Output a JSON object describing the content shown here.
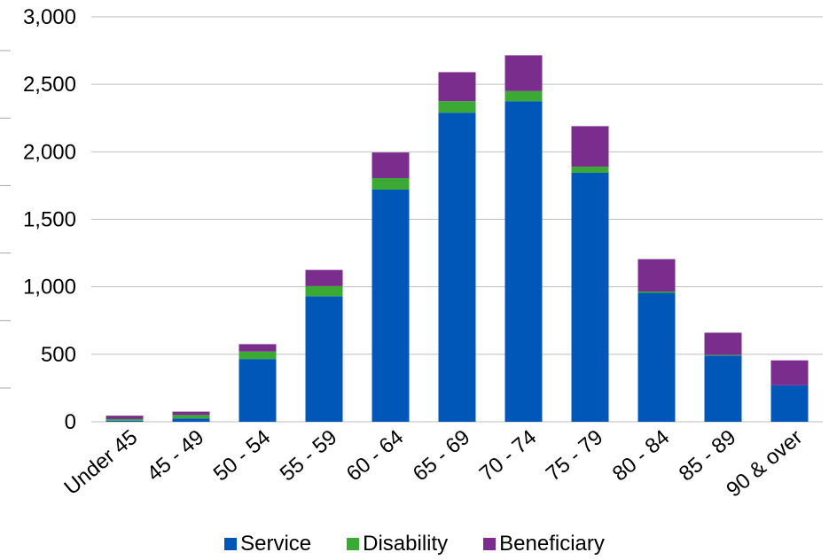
{
  "chart_data": {
    "type": "bar",
    "stacked": true,
    "categories": [
      "Under 45",
      "45 - 49",
      "50 - 54",
      "55 - 59",
      "60 - 64",
      "65 - 69",
      "70 - 74",
      "75 - 79",
      "80 - 84",
      "85 - 89",
      "90 & over"
    ],
    "series": [
      {
        "name": "Service",
        "color": "#0057b8",
        "values": [
          8,
          25,
          465,
          930,
          1720,
          2290,
          2375,
          1845,
          955,
          490,
          270
        ]
      },
      {
        "name": "Disability",
        "color": "#3aaa35",
        "values": [
          12,
          25,
          55,
          75,
          85,
          85,
          75,
          45,
          10,
          5,
          0
        ]
      },
      {
        "name": "Beneficiary",
        "color": "#7b2d8e",
        "values": [
          25,
          25,
          55,
          120,
          190,
          215,
          265,
          300,
          240,
          165,
          185
        ]
      }
    ],
    "ylim": [
      0,
      3000
    ],
    "yticks": [
      0,
      500,
      1000,
      1500,
      2000,
      2500,
      3000
    ],
    "ytick_labels": [
      "0",
      "500",
      "1,000",
      "1,500",
      "2,000",
      "2,500",
      "3,000"
    ],
    "grid": true,
    "legend_position": "bottom",
    "title": "",
    "xlabel": "",
    "ylabel": ""
  }
}
